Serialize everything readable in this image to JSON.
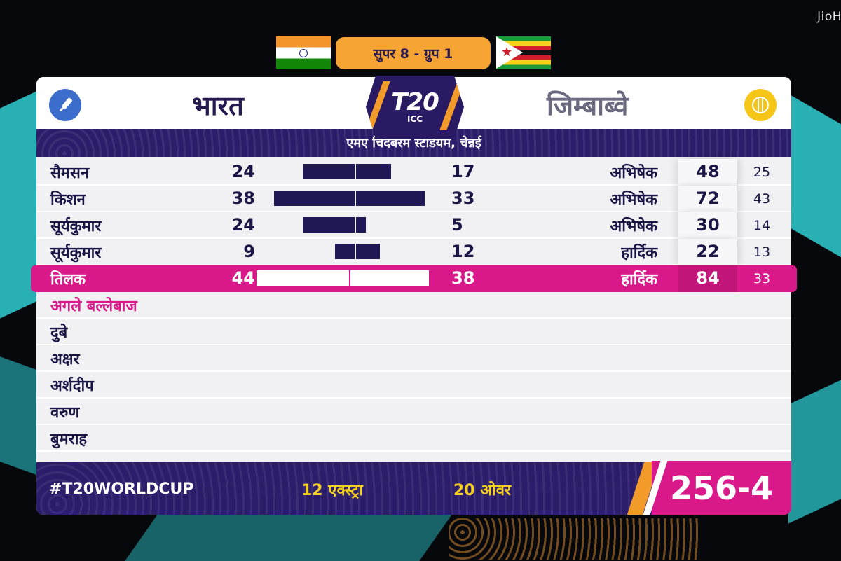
{
  "watermark": "JioHo",
  "header": {
    "group": "सुपर 8 - ग्रुप 1",
    "home_flag": "india-flag",
    "away_flag": "zimbabwe-flag"
  },
  "teams": {
    "batting": "भारत",
    "bowling": "जिम्बाब्वे",
    "batting_icon": "cricket-bat-icon",
    "bowling_icon": "cricket-ball-icon"
  },
  "logo": {
    "main": "T20",
    "sub": "ICC"
  },
  "venue": "एमए चिदंबरम स्टेडियम, चेन्नई",
  "partnerships": [
    {
      "batter": "सैमसन",
      "runs": "24",
      "partner_runs": "17",
      "bowler": "अभिषेक",
      "bowler_runs": "48",
      "bowler_balls": "25"
    },
    {
      "batter": "किशन",
      "runs": "38",
      "partner_runs": "33",
      "bowler": "अभिषेक",
      "bowler_runs": "72",
      "bowler_balls": "43"
    },
    {
      "batter": "सूर्यकुमार",
      "runs": "24",
      "partner_runs": "5",
      "bowler": "अभिषेक",
      "bowler_runs": "30",
      "bowler_balls": "14"
    },
    {
      "batter": "सूर्यकुमार",
      "runs": "9",
      "partner_runs": "12",
      "bowler": "हार्दिक",
      "bowler_runs": "22",
      "bowler_balls": "13"
    },
    {
      "batter": "तिलक",
      "runs": "44",
      "partner_runs": "38",
      "bowler": "हार्दिक",
      "bowler_runs": "84",
      "bowler_balls": "33"
    }
  ],
  "next_batters_title": "अगले बल्लेबाज",
  "next_batters": [
    "दुबे",
    "अक्षर",
    "अर्शदीप",
    "वरुण",
    "बुमराह"
  ],
  "footer": {
    "hashtag": "#T20WORLDCUP",
    "extras": "12 एक्स्ट्रा",
    "overs": "20 ओवर",
    "score": "256-4"
  },
  "colors": {
    "navy": "#2c1d6b",
    "highlight": "#d9198a",
    "orange": "#f6a534",
    "yellow": "#f5d020"
  }
}
